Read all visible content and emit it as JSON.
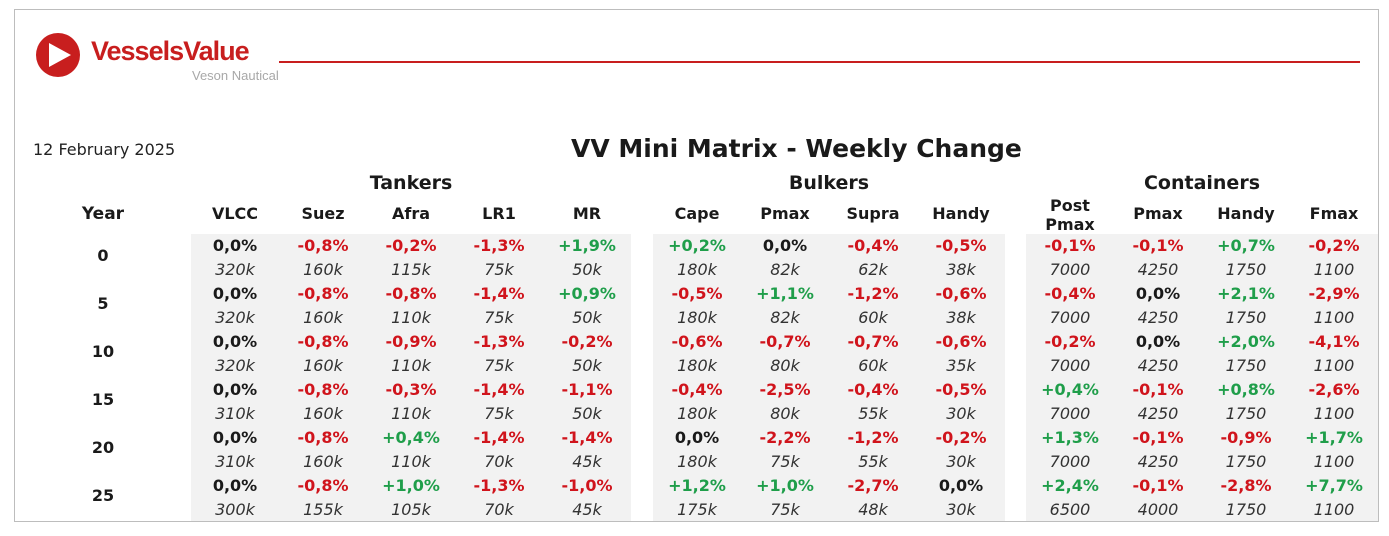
{
  "brand": {
    "name": "VesselsValue",
    "sub": "Veson Nautical",
    "colors": {
      "brand_red": "#c81e1e",
      "negative": "#d0141c",
      "positive": "#1f9e4a",
      "group_bg": "#f2f2f2"
    }
  },
  "report": {
    "date": "12 February 2025",
    "title": "VV Mini Matrix - Weekly Change"
  },
  "table": {
    "year_header": "Year",
    "groups": [
      {
        "name": "Tankers",
        "columns": [
          "VLCC",
          "Suez",
          "Afra",
          "LR1",
          "MR"
        ]
      },
      {
        "name": "Bulkers",
        "columns": [
          "Cape",
          "Pmax",
          "Supra",
          "Handy"
        ]
      },
      {
        "name": "Containers",
        "columns": [
          "Post Pmax",
          "Pmax",
          "Handy",
          "Fmax"
        ]
      }
    ],
    "rows": [
      {
        "year": "0",
        "changes": [
          "0,0%",
          "-0,8%",
          "-0,2%",
          "-1,3%",
          "+1,9%",
          "+0,2%",
          "0,0%",
          "-0,4%",
          "-0,5%",
          "-0,1%",
          "-0,1%",
          "+0,7%",
          "-0,2%"
        ],
        "sizes": [
          "320k",
          "160k",
          "115k",
          "75k",
          "50k",
          "180k",
          "82k",
          "62k",
          "38k",
          "7000",
          "4250",
          "1750",
          "1100"
        ]
      },
      {
        "year": "5",
        "changes": [
          "0,0%",
          "-0,8%",
          "-0,8%",
          "-1,4%",
          "+0,9%",
          "-0,5%",
          "+1,1%",
          "-1,2%",
          "-0,6%",
          "-0,4%",
          "0,0%",
          "+2,1%",
          "-2,9%"
        ],
        "sizes": [
          "320k",
          "160k",
          "110k",
          "75k",
          "50k",
          "180k",
          "82k",
          "60k",
          "38k",
          "7000",
          "4250",
          "1750",
          "1100"
        ]
      },
      {
        "year": "10",
        "changes": [
          "0,0%",
          "-0,8%",
          "-0,9%",
          "-1,3%",
          "-0,2%",
          "-0,6%",
          "-0,7%",
          "-0,7%",
          "-0,6%",
          "-0,2%",
          "0,0%",
          "+2,0%",
          "-4,1%"
        ],
        "sizes": [
          "320k",
          "160k",
          "110k",
          "75k",
          "50k",
          "180k",
          "80k",
          "60k",
          "35k",
          "7000",
          "4250",
          "1750",
          "1100"
        ]
      },
      {
        "year": "15",
        "changes": [
          "0,0%",
          "-0,8%",
          "-0,3%",
          "-1,4%",
          "-1,1%",
          "-0,4%",
          "-2,5%",
          "-0,4%",
          "-0,5%",
          "+0,4%",
          "-0,1%",
          "+0,8%",
          "-2,6%"
        ],
        "sizes": [
          "310k",
          "160k",
          "110k",
          "75k",
          "50k",
          "180k",
          "80k",
          "55k",
          "30k",
          "7000",
          "4250",
          "1750",
          "1100"
        ]
      },
      {
        "year": "20",
        "changes": [
          "0,0%",
          "-0,8%",
          "+0,4%",
          "-1,4%",
          "-1,4%",
          "0,0%",
          "-2,2%",
          "-1,2%",
          "-0,2%",
          "+1,3%",
          "-0,1%",
          "-0,9%",
          "+1,7%"
        ],
        "sizes": [
          "310k",
          "160k",
          "110k",
          "70k",
          "45k",
          "180k",
          "75k",
          "55k",
          "30k",
          "7000",
          "4250",
          "1750",
          "1100"
        ]
      },
      {
        "year": "25",
        "changes": [
          "0,0%",
          "-0,8%",
          "+1,0%",
          "-1,3%",
          "-1,0%",
          "+1,2%",
          "+1,0%",
          "-2,7%",
          "0,0%",
          "+2,4%",
          "-0,1%",
          "-2,8%",
          "+7,7%"
        ],
        "sizes": [
          "300k",
          "155k",
          "105k",
          "70k",
          "45k",
          "175k",
          "75k",
          "48k",
          "30k",
          "6500",
          "4000",
          "1750",
          "1100"
        ]
      }
    ]
  }
}
